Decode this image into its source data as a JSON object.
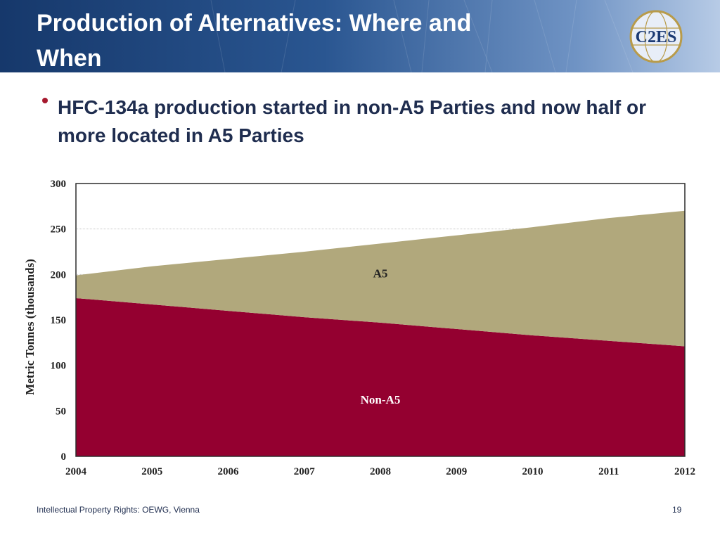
{
  "header": {
    "title": "Production of Alternatives: Where and When",
    "logo_text": "C2ES"
  },
  "bullet": {
    "text": "HFC-134a production started in non-A5 Parties and now half or more located in A5 Parties"
  },
  "chart_data": {
    "type": "area",
    "stacked": true,
    "x": [
      2004,
      2005,
      2006,
      2007,
      2008,
      2009,
      2010,
      2011,
      2012
    ],
    "series": [
      {
        "name": "Non-A5",
        "color": "#940030",
        "values": [
          174,
          167,
          160,
          153,
          147,
          140,
          133,
          127,
          121
        ]
      },
      {
        "name": "A5",
        "color": "#b1a87c",
        "values": [
          25,
          42,
          57,
          72,
          87,
          103,
          119,
          135,
          149
        ]
      }
    ],
    "ylabel": "Metric Tonnes (thousands)",
    "xlabel": "",
    "ylim": [
      0,
      300
    ],
    "yticks": [
      0,
      50,
      100,
      150,
      200,
      250,
      300
    ],
    "grid": true,
    "series_labels_inside": true
  },
  "footer": {
    "text": "Intellectual Property Rights: OEWG, Vienna",
    "page": "19"
  }
}
